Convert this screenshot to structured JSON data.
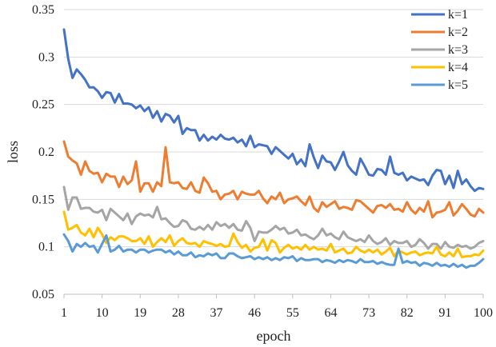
{
  "chart_data": {
    "type": "line",
    "title": "",
    "xlabel": "epoch",
    "ylabel": "loss",
    "xlim": [
      1,
      100
    ],
    "ylim": [
      0.05,
      0.35
    ],
    "xticks": [
      1,
      10,
      19,
      28,
      37,
      46,
      55,
      64,
      73,
      82,
      91,
      100
    ],
    "yticks": [
      0.05,
      0.1,
      0.15,
      0.2,
      0.25,
      0.3,
      0.35
    ],
    "ytick_labels": [
      "0.05",
      "0.1",
      "0.15",
      "0.2",
      "0.25",
      "0.3",
      "0.35"
    ],
    "grid": "horizontal",
    "legend_position": "top-right",
    "series": [
      {
        "name": "k=1",
        "color": "#4472C4",
        "values": [
          0.329,
          0.298,
          0.278,
          0.287,
          0.282,
          0.276,
          0.268,
          0.268,
          0.264,
          0.257,
          0.263,
          0.262,
          0.252,
          0.261,
          0.251,
          0.251,
          0.25,
          0.246,
          0.249,
          0.243,
          0.247,
          0.236,
          0.243,
          0.232,
          0.24,
          0.238,
          0.231,
          0.238,
          0.219,
          0.225,
          0.223,
          0.223,
          0.212,
          0.218,
          0.212,
          0.216,
          0.213,
          0.218,
          0.214,
          0.213,
          0.215,
          0.21,
          0.213,
          0.206,
          0.217,
          0.205,
          0.208,
          0.207,
          0.206,
          0.198,
          0.205,
          0.201,
          0.197,
          0.193,
          0.198,
          0.187,
          0.192,
          0.185,
          0.208,
          0.194,
          0.183,
          0.196,
          0.19,
          0.189,
          0.181,
          0.19,
          0.2,
          0.186,
          0.18,
          0.176,
          0.193,
          0.185,
          0.176,
          0.175,
          0.182,
          0.181,
          0.176,
          0.195,
          0.178,
          0.176,
          0.178,
          0.17,
          0.174,
          0.172,
          0.17,
          0.171,
          0.165,
          0.175,
          0.181,
          0.18,
          0.166,
          0.175,
          0.162,
          0.18,
          0.166,
          0.171,
          0.164,
          0.159,
          0.162,
          0.161
        ]
      },
      {
        "name": "k=2",
        "color": "#ED7D31",
        "values": [
          0.211,
          0.195,
          0.191,
          0.188,
          0.176,
          0.19,
          0.18,
          0.177,
          0.178,
          0.168,
          0.177,
          0.174,
          0.174,
          0.163,
          0.174,
          0.166,
          0.17,
          0.19,
          0.158,
          0.167,
          0.167,
          0.158,
          0.168,
          0.164,
          0.205,
          0.168,
          0.167,
          0.168,
          0.162,
          0.161,
          0.168,
          0.159,
          0.157,
          0.173,
          0.167,
          0.158,
          0.159,
          0.15,
          0.155,
          0.156,
          0.159,
          0.15,
          0.158,
          0.156,
          0.155,
          0.155,
          0.159,
          0.151,
          0.146,
          0.153,
          0.15,
          0.157,
          0.146,
          0.15,
          0.151,
          0.153,
          0.148,
          0.144,
          0.153,
          0.141,
          0.137,
          0.147,
          0.142,
          0.145,
          0.148,
          0.14,
          0.142,
          0.141,
          0.139,
          0.149,
          0.148,
          0.144,
          0.14,
          0.136,
          0.143,
          0.144,
          0.141,
          0.145,
          0.139,
          0.14,
          0.137,
          0.147,
          0.139,
          0.135,
          0.141,
          0.137,
          0.148,
          0.131,
          0.136,
          0.137,
          0.139,
          0.147,
          0.133,
          0.138,
          0.145,
          0.14,
          0.134,
          0.132,
          0.14,
          0.136
        ]
      },
      {
        "name": "k=3",
        "color": "#A5A5A5",
        "values": [
          0.163,
          0.139,
          0.152,
          0.152,
          0.14,
          0.141,
          0.141,
          0.137,
          0.136,
          0.139,
          0.128,
          0.14,
          0.136,
          0.132,
          0.128,
          0.135,
          0.124,
          0.132,
          0.135,
          0.133,
          0.134,
          0.131,
          0.142,
          0.129,
          0.13,
          0.125,
          0.121,
          0.122,
          0.128,
          0.126,
          0.119,
          0.118,
          0.121,
          0.118,
          0.123,
          0.118,
          0.126,
          0.122,
          0.124,
          0.12,
          0.124,
          0.118,
          0.117,
          0.127,
          0.12,
          0.106,
          0.116,
          0.115,
          0.115,
          0.118,
          0.122,
          0.118,
          0.12,
          0.114,
          0.115,
          0.118,
          0.112,
          0.113,
          0.11,
          0.108,
          0.112,
          0.119,
          0.112,
          0.114,
          0.11,
          0.108,
          0.116,
          0.11,
          0.108,
          0.106,
          0.108,
          0.105,
          0.112,
          0.106,
          0.103,
          0.105,
          0.109,
          0.102,
          0.106,
          0.104,
          0.104,
          0.106,
          0.1,
          0.102,
          0.108,
          0.104,
          0.098,
          0.103,
          0.103,
          0.098,
          0.105,
          0.1,
          0.099,
          0.102,
          0.1,
          0.101,
          0.098,
          0.1,
          0.104,
          0.106
        ]
      },
      {
        "name": "k=4",
        "color": "#FFC000",
        "values": [
          0.137,
          0.118,
          0.12,
          0.123,
          0.115,
          0.112,
          0.119,
          0.11,
          0.12,
          0.113,
          0.104,
          0.11,
          0.107,
          0.111,
          0.111,
          0.109,
          0.106,
          0.106,
          0.109,
          0.103,
          0.111,
          0.1,
          0.105,
          0.109,
          0.105,
          0.112,
          0.101,
          0.106,
          0.109,
          0.104,
          0.103,
          0.104,
          0.1,
          0.106,
          0.104,
          0.103,
          0.101,
          0.103,
          0.1,
          0.101,
          0.114,
          0.105,
          0.099,
          0.102,
          0.095,
          0.099,
          0.1,
          0.108,
          0.096,
          0.107,
          0.104,
          0.094,
          0.099,
          0.102,
          0.098,
          0.1,
          0.097,
          0.102,
          0.097,
          0.1,
          0.097,
          0.098,
          0.096,
          0.103,
          0.094,
          0.096,
          0.098,
          0.093,
          0.094,
          0.1,
          0.096,
          0.094,
          0.097,
          0.094,
          0.097,
          0.092,
          0.095,
          0.099,
          0.09,
          0.096,
          0.094,
          0.092,
          0.094,
          0.095,
          0.091,
          0.093,
          0.094,
          0.093,
          0.1,
          0.092,
          0.09,
          0.094,
          0.09,
          0.098,
          0.089,
          0.09,
          0.09,
          0.092,
          0.091,
          0.096
        ]
      },
      {
        "name": "k=5",
        "color": "#5B9BD5",
        "values": [
          0.113,
          0.106,
          0.095,
          0.103,
          0.1,
          0.104,
          0.1,
          0.101,
          0.094,
          0.103,
          0.112,
          0.095,
          0.097,
          0.101,
          0.095,
          0.097,
          0.097,
          0.094,
          0.097,
          0.097,
          0.094,
          0.096,
          0.097,
          0.097,
          0.094,
          0.096,
          0.092,
          0.095,
          0.091,
          0.091,
          0.094,
          0.089,
          0.091,
          0.09,
          0.093,
          0.091,
          0.093,
          0.088,
          0.088,
          0.093,
          0.093,
          0.09,
          0.088,
          0.089,
          0.09,
          0.087,
          0.089,
          0.087,
          0.089,
          0.086,
          0.088,
          0.086,
          0.089,
          0.088,
          0.09,
          0.085,
          0.088,
          0.086,
          0.086,
          0.087,
          0.087,
          0.084,
          0.086,
          0.085,
          0.083,
          0.086,
          0.084,
          0.086,
          0.085,
          0.083,
          0.087,
          0.084,
          0.084,
          0.085,
          0.082,
          0.084,
          0.082,
          0.081,
          0.081,
          0.098,
          0.083,
          0.085,
          0.083,
          0.084,
          0.08,
          0.083,
          0.082,
          0.08,
          0.083,
          0.08,
          0.081,
          0.079,
          0.082,
          0.079,
          0.081,
          0.078,
          0.08,
          0.08,
          0.083,
          0.087
        ]
      }
    ]
  }
}
